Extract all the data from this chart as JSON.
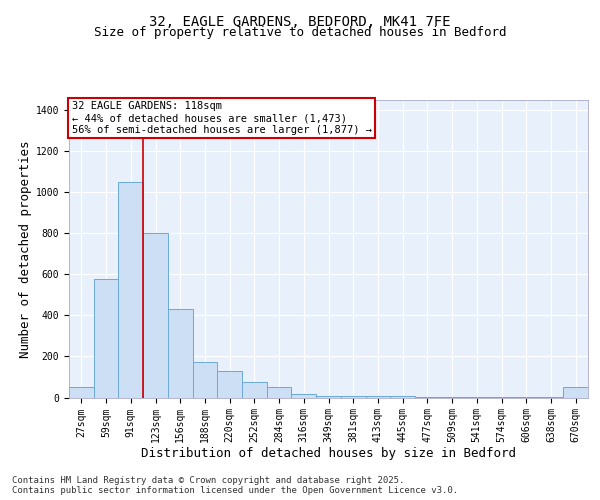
{
  "title_line1": "32, EAGLE GARDENS, BEDFORD, MK41 7FE",
  "title_line2": "Size of property relative to detached houses in Bedford",
  "xlabel": "Distribution of detached houses by size in Bedford",
  "ylabel": "Number of detached properties",
  "bin_labels": [
    "27sqm",
    "59sqm",
    "91sqm",
    "123sqm",
    "156sqm",
    "188sqm",
    "220sqm",
    "252sqm",
    "284sqm",
    "316sqm",
    "349sqm",
    "381sqm",
    "413sqm",
    "445sqm",
    "477sqm",
    "509sqm",
    "541sqm",
    "574sqm",
    "606sqm",
    "638sqm",
    "670sqm"
  ],
  "bar_heights": [
    50,
    580,
    1050,
    800,
    430,
    175,
    130,
    75,
    50,
    15,
    8,
    5,
    5,
    5,
    3,
    3,
    2,
    2,
    2,
    2,
    50
  ],
  "bar_color": "#ccdff5",
  "bar_edgecolor": "#6aaad4",
  "annotation_text": "32 EAGLE GARDENS: 118sqm\n← 44% of detached houses are smaller (1,473)\n56% of semi-detached houses are larger (1,877) →",
  "annotation_box_facecolor": "#ffffff",
  "annotation_border_color": "#cc0000",
  "ylim": [
    0,
    1450
  ],
  "yticks": [
    0,
    200,
    400,
    600,
    800,
    1000,
    1200,
    1400
  ],
  "background_color": "#e8f1fb",
  "grid_color": "#ffffff",
  "footer_text": "Contains HM Land Registry data © Crown copyright and database right 2025.\nContains public sector information licensed under the Open Government Licence v3.0.",
  "title_fontsize": 10,
  "subtitle_fontsize": 9,
  "axis_label_fontsize": 9,
  "tick_fontsize": 7,
  "annotation_fontsize": 7.5,
  "footer_fontsize": 6.5
}
